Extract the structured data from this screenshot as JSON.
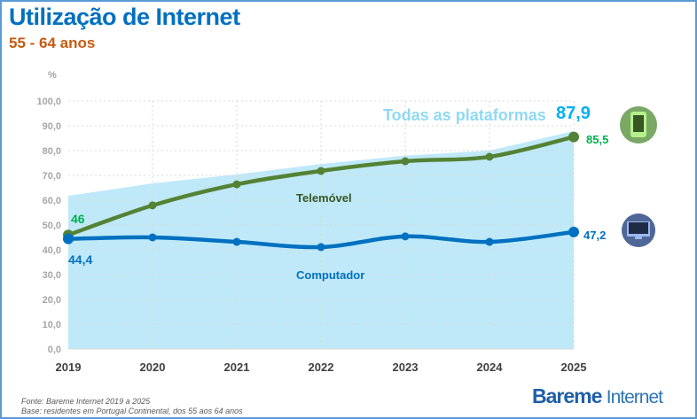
{
  "header": {
    "title": "Utilização de Internet",
    "subtitle": "55 - 64 anos"
  },
  "footer": {
    "source": "Fonte: Bareme Internet 2019 a 2025",
    "base": "Base: residentes em Portugal Continental, dos 55 aos 64 anos",
    "logo_main": "Bareme",
    "logo_sub": "Internet"
  },
  "chart_data": {
    "type": "line",
    "ylabel": "%",
    "ylim": [
      0,
      100
    ],
    "yticks": [
      "0,0",
      "10,0",
      "20,0",
      "30,0",
      "40,0",
      "50,0",
      "60,0",
      "70,0",
      "80,0",
      "90,0",
      "100,0"
    ],
    "grid": true,
    "categories": [
      "2019",
      "2020",
      "2021",
      "2022",
      "2023",
      "2024",
      "2025"
    ],
    "series": [
      {
        "name": "Todas as plataformas",
        "kind": "area",
        "color": "#bfe9f9",
        "label_color": "#8fd9f5",
        "values": [
          61.8,
          66.8,
          70.4,
          74.6,
          78,
          80,
          87.9
        ],
        "end_label": "87,9",
        "end_label_color": "#00b0f0"
      },
      {
        "name": "Telemóvel",
        "kind": "line",
        "color": "#548235",
        "label_color": "#375623",
        "values": [
          46,
          57.9,
          66.4,
          71.8,
          75.7,
          77.5,
          85.5
        ],
        "start_label": "46",
        "end_label": "85,5",
        "value_label_color": "#00b050",
        "icon": "smartphone-icon"
      },
      {
        "name": "Computador",
        "kind": "line",
        "color": "#0070c0",
        "label_color": "#0070c0",
        "values": [
          44.4,
          45,
          43.2,
          41.1,
          45.4,
          43.2,
          47.2
        ],
        "start_label": "44,4",
        "end_label": "47,2",
        "value_label_color": "#0070c0",
        "icon": "desktop-computer-icon"
      }
    ]
  }
}
